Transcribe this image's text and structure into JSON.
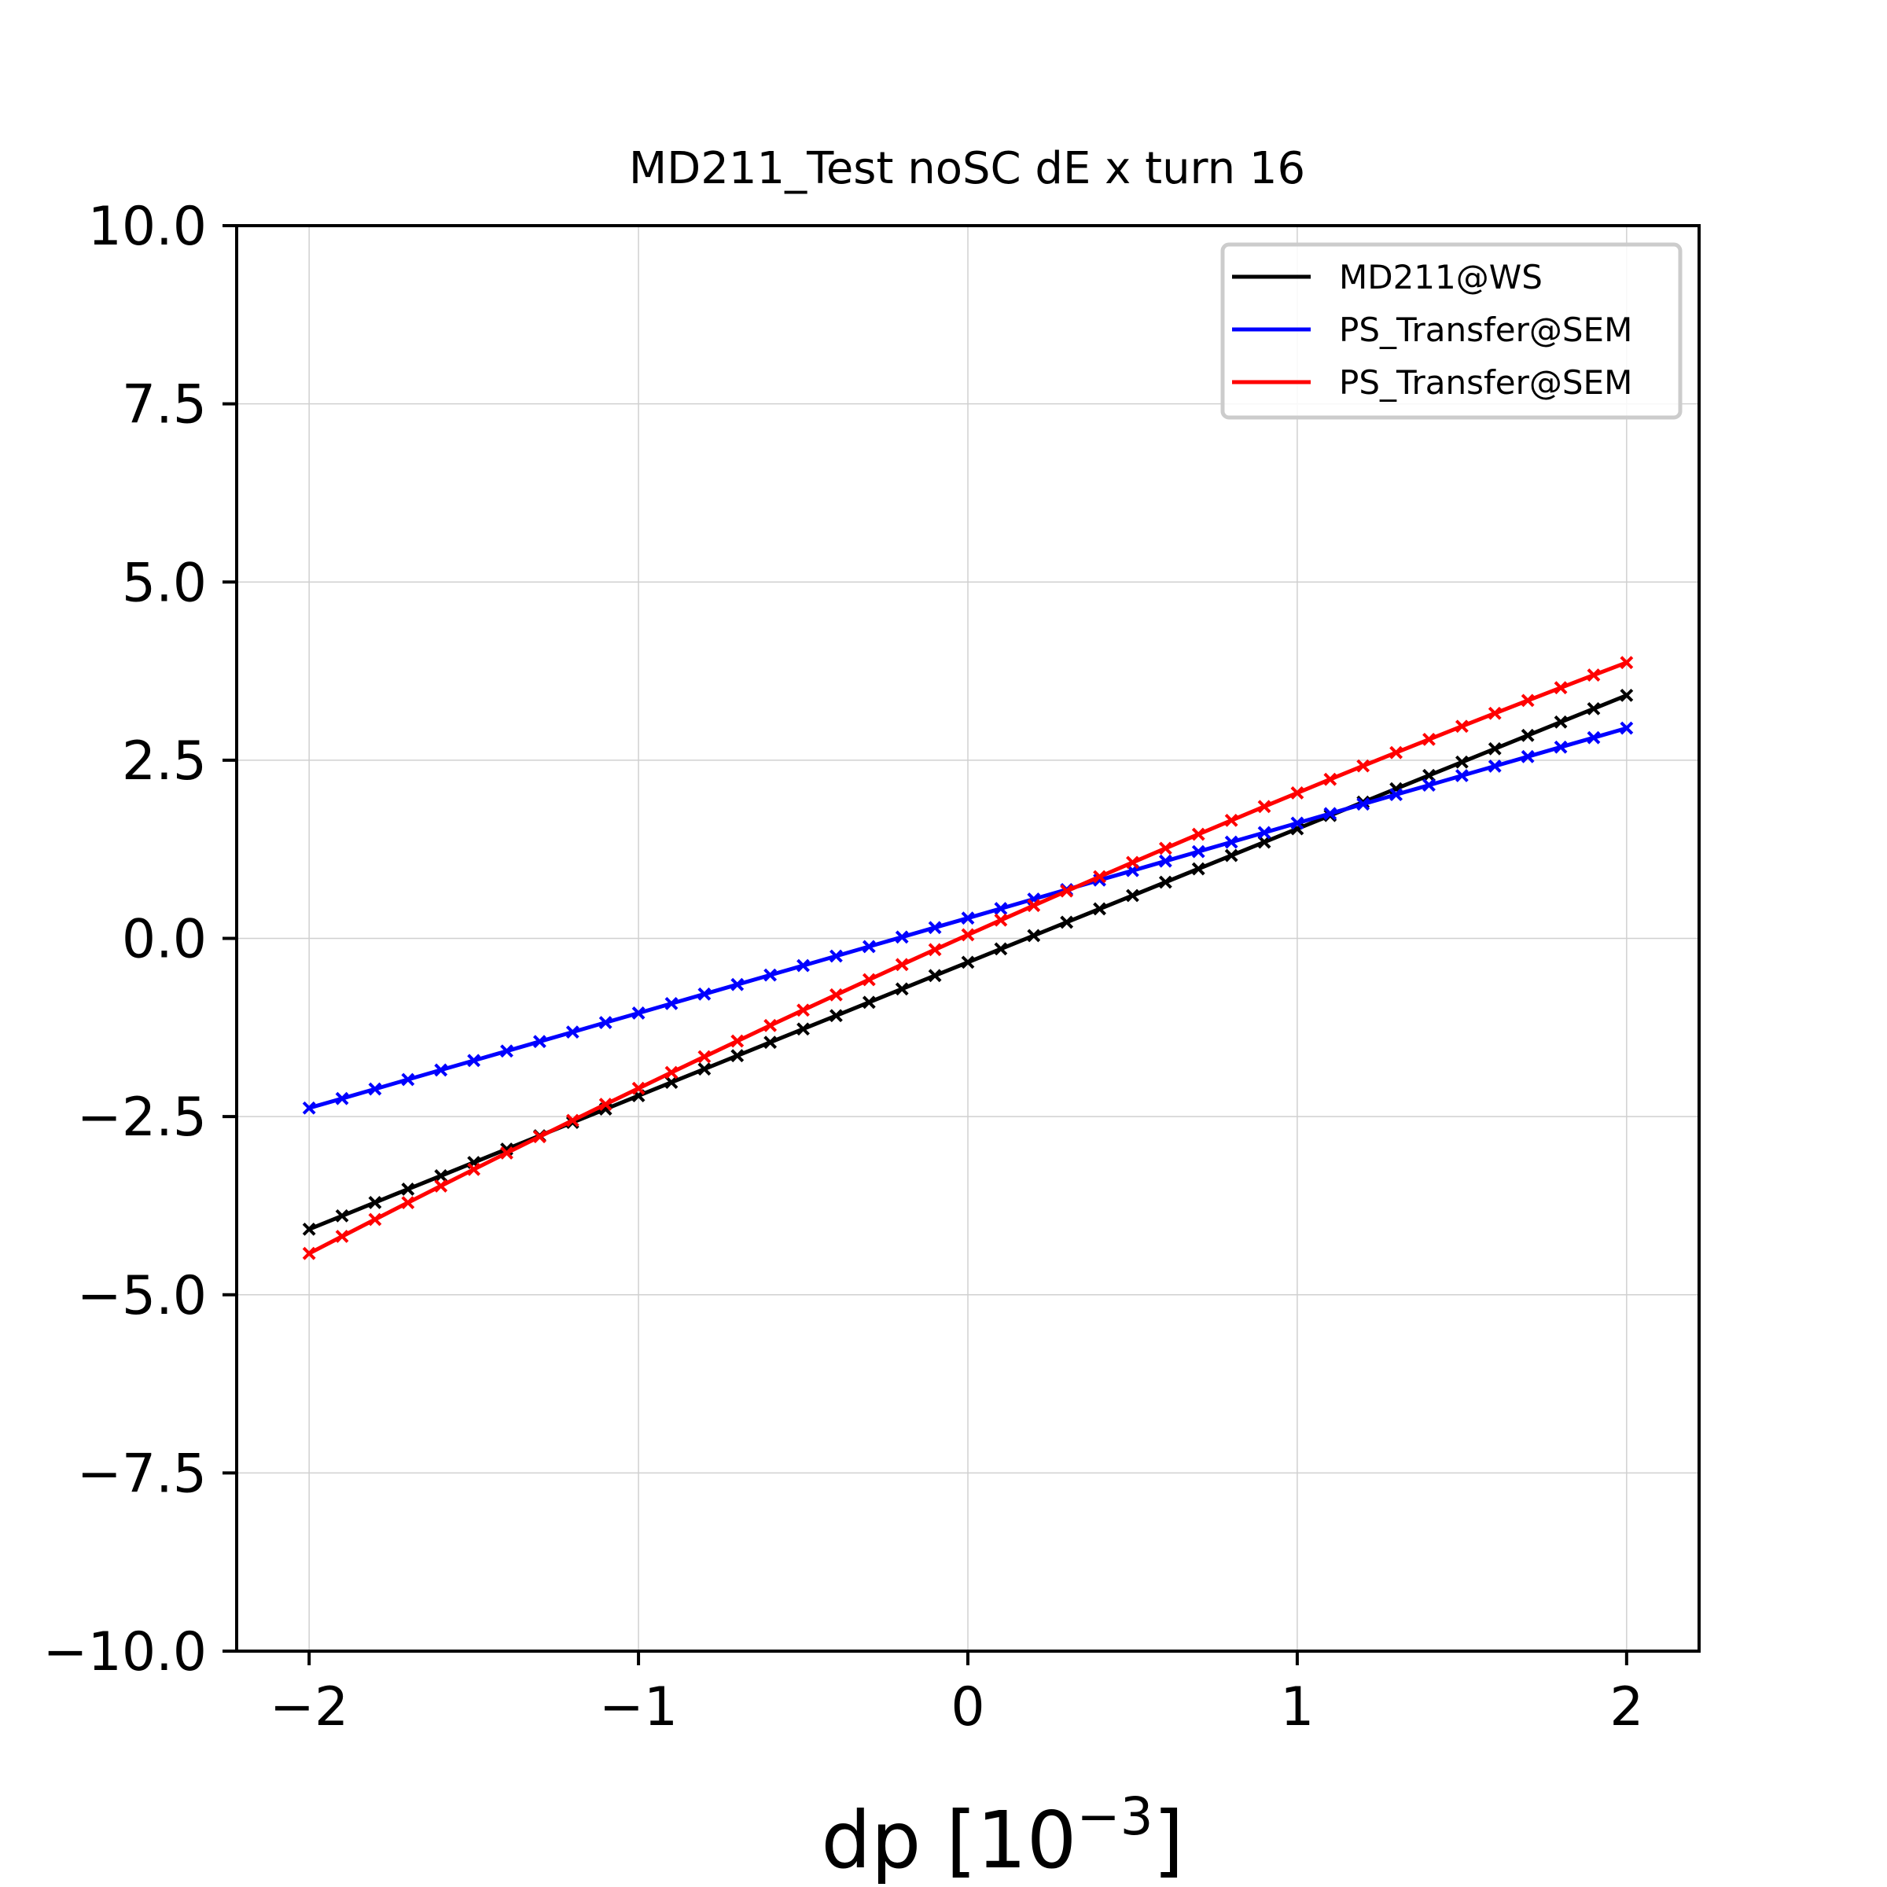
{
  "chart_data": {
    "type": "line",
    "title": "MD211_Test noSC dE x turn 16",
    "xlabel_main": "dp [10",
    "xlabel_exp": "−3",
    "xlabel_close": "]",
    "ylabel": "",
    "xlim": [
      -2.22,
      2.22
    ],
    "ylim": [
      -10,
      10
    ],
    "xticks": [
      -2,
      -1,
      0,
      1,
      2
    ],
    "xtick_labels": [
      "−2",
      "−1",
      "0",
      "1",
      "2"
    ],
    "yticks": [
      -10,
      -7.5,
      -5,
      -2.5,
      0,
      2.5,
      5,
      7.5,
      10
    ],
    "ytick_labels": [
      "−10.0",
      "−7.5",
      "−5.0",
      "−2.5",
      "0.0",
      "2.5",
      "5.0",
      "7.5",
      "10.0"
    ],
    "grid": true,
    "legend_position": "top-right",
    "marker": "x",
    "x_range": {
      "start": -2.0,
      "end": 2.0,
      "step": 0.1
    },
    "series": [
      {
        "name": "MD211@WS",
        "color": "#000000",
        "x": [
          -2.0,
          2.0
        ],
        "y": [
          -4.08,
          3.41
        ],
        "y_form": "linear"
      },
      {
        "name": "PS_Transfer@SEM",
        "color": "#0000ff",
        "x": [
          -2.0,
          2.0
        ],
        "y": [
          -2.38,
          2.95
        ],
        "y_form": "linear"
      },
      {
        "name": "PS_Transfer@SEM",
        "color": "#ff0000",
        "x": [
          -2.0,
          0.0,
          2.0
        ],
        "y": [
          -4.42,
          0.05,
          3.87
        ],
        "y_form": "quadratic"
      }
    ]
  }
}
